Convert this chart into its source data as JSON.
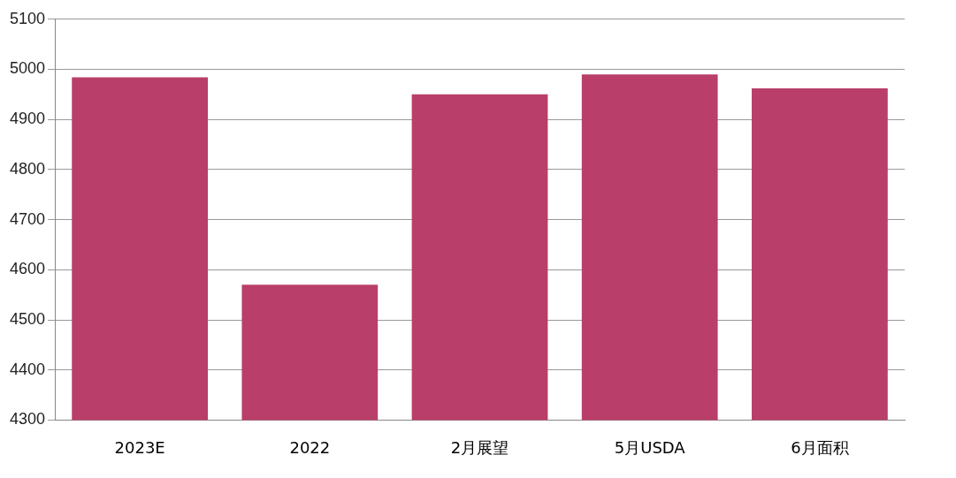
{
  "chart_data": {
    "type": "bar",
    "categories": [
      "2023E",
      "2022",
      "2月展望",
      "5月USDA",
      "6月面积"
    ],
    "values": [
      4984,
      4570,
      4950,
      4990,
      4962
    ],
    "color": "#b93e69",
    "ylim": [
      4300,
      5100
    ],
    "yticks": [
      4300,
      4400,
      4500,
      4600,
      4700,
      4800,
      4900,
      5000,
      5100
    ],
    "grid": "y",
    "legend": false
  }
}
